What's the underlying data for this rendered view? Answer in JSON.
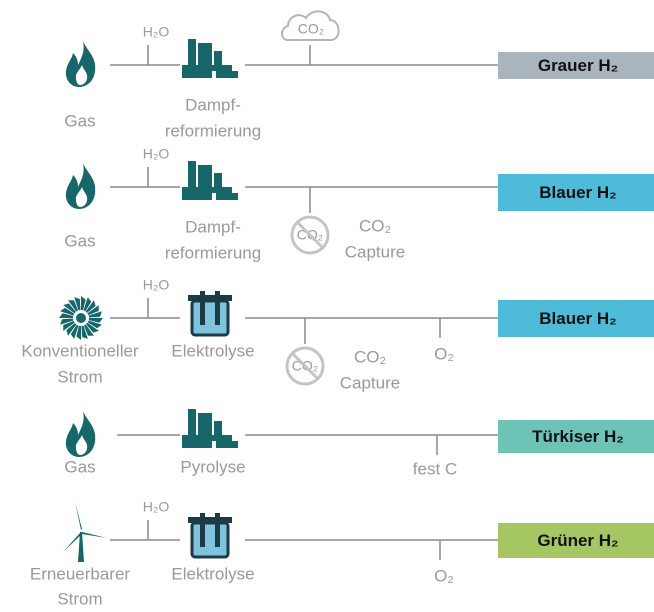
{
  "rows": [
    {
      "source": [
        "Gas"
      ],
      "water": "H₂O",
      "process": [
        "Dampf-",
        "reformierung"
      ],
      "byproduct": "CO₂",
      "output": "Grauer H₂"
    },
    {
      "source": [
        "Gas"
      ],
      "water": "H₂O",
      "process": [
        "Dampf-",
        "reformierung"
      ],
      "capture_icon": "CO₂",
      "capture": [
        "CO₂",
        "Capture"
      ],
      "output": "Blauer H₂"
    },
    {
      "source": [
        "Konventioneller",
        "Strom"
      ],
      "water": "H₂O",
      "process": [
        "Elektrolyse"
      ],
      "capture_icon": "CO₂",
      "capture": [
        "CO₂",
        "Capture"
      ],
      "oxygen": "O₂",
      "output": "Blauer H₂"
    },
    {
      "source": [
        "Gas"
      ],
      "process": [
        "Pyrolyse"
      ],
      "solid": "fest C",
      "output": "Türkiser H₂"
    },
    {
      "source": [
        "Erneuerbarer",
        "Strom"
      ],
      "water": "H₂O",
      "process": [
        "Elektrolyse"
      ],
      "oxygen": "O₂",
      "output": "Grüner H₂"
    }
  ]
}
